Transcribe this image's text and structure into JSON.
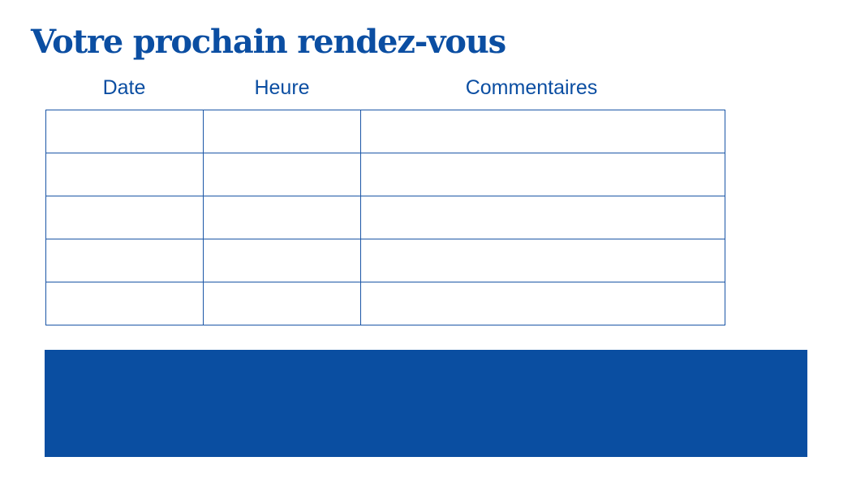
{
  "title": "Votre prochain rendez-vous",
  "table": {
    "headers": [
      "Date",
      "Heure",
      "Commentaires"
    ],
    "rows": [
      [
        "",
        "",
        ""
      ],
      [
        "",
        "",
        ""
      ],
      [
        "",
        "",
        ""
      ],
      [
        "",
        "",
        ""
      ],
      [
        "",
        "",
        ""
      ]
    ]
  },
  "colors": {
    "accent": "#0a4ea1"
  }
}
